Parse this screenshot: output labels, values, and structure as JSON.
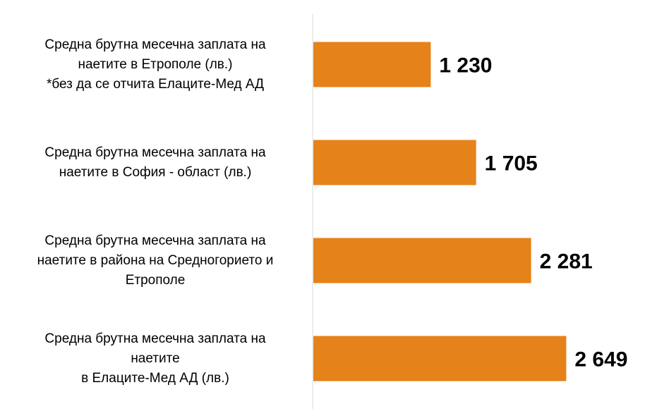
{
  "chart_data": {
    "type": "bar",
    "orientation": "horizontal",
    "categories": [
      [
        "Средна брутна месечна заплата на",
        "наетите в Етрополе (лв.)",
        "*без да се отчита Елаците-Мед АД"
      ],
      [
        "Средна брутна месечна заплата на",
        "наетите в София - област (лв.)"
      ],
      [
        "Средна брутна месечна заплата на",
        "наетите в района на Средногорието и",
        "Етрополе"
      ],
      [
        "Средна брутна месечна заплата на",
        "наетите",
        "в Елаците-Мед АД (лв.)"
      ]
    ],
    "values": [
      1230,
      1705,
      2281,
      2649
    ],
    "value_labels": [
      "1 230",
      "1 705",
      "2 281",
      "2 649"
    ],
    "bar_color": "#E6821A",
    "axis_color": "#D9D9D9",
    "xlim": [
      0,
      3300
    ],
    "grid": false,
    "legend": "none",
    "title": "",
    "xlabel": "",
    "ylabel": ""
  }
}
